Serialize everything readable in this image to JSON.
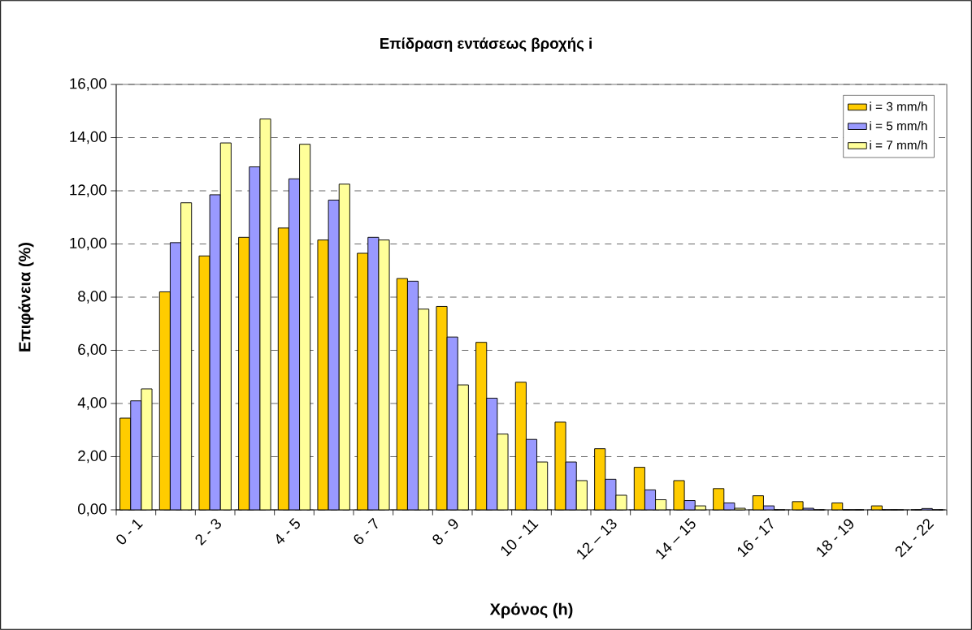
{
  "chart_data": {
    "type": "bar",
    "title": "Επίδραση εντάσεως βροχής i",
    "xlabel": "Χρόνος (h)",
    "ylabel": "Επιφάνεια (%)",
    "categories": [
      "0 - 1",
      null,
      "2 - 3",
      null,
      "4 - 5",
      null,
      "6 - 7",
      null,
      "8 - 9",
      null,
      "10 - 11",
      null,
      "12 – 13",
      null,
      "14 – 15",
      null,
      "16 - 17",
      null,
      "18 - 19",
      null,
      "21 - 22"
    ],
    "series": [
      {
        "name": "i = 3 mm/h",
        "color": "#ffcc00",
        "values": [
          3.45,
          8.2,
          9.55,
          10.25,
          10.6,
          10.15,
          9.65,
          8.7,
          7.65,
          6.3,
          4.8,
          3.3,
          2.3,
          1.6,
          1.1,
          0.8,
          0.53,
          0.31,
          0.26,
          0.15,
          0
        ]
      },
      {
        "name": "i = 5 mm/h",
        "color": "#9999ff",
        "values": [
          4.1,
          10.05,
          11.85,
          12.9,
          12.45,
          11.65,
          10.25,
          8.6,
          6.5,
          4.2,
          2.65,
          1.8,
          1.15,
          0.75,
          0.35,
          0.26,
          0.15,
          0.06,
          0,
          0,
          0.05
        ]
      },
      {
        "name": "i = 7 mm/h",
        "color": "#ffff99",
        "values": [
          4.55,
          11.55,
          13.8,
          14.7,
          13.75,
          12.25,
          10.15,
          7.55,
          4.7,
          2.85,
          1.8,
          1.1,
          0.55,
          0.38,
          0.15,
          0.06,
          0,
          0,
          0,
          0,
          0
        ]
      }
    ],
    "ylim": [
      0,
      16
    ],
    "yticks": [
      {
        "value": 0,
        "label": "0,00"
      },
      {
        "value": 2,
        "label": "2,00"
      },
      {
        "value": 4,
        "label": "4,00"
      },
      {
        "value": 6,
        "label": "6,00"
      },
      {
        "value": 8,
        "label": "8,00"
      },
      {
        "value": 10,
        "label": "10,00"
      },
      {
        "value": 12,
        "label": "12,00"
      },
      {
        "value": 14,
        "label": "14,00"
      },
      {
        "value": 16,
        "label": "16,00"
      }
    ],
    "grid": "y",
    "legend": "top right"
  }
}
